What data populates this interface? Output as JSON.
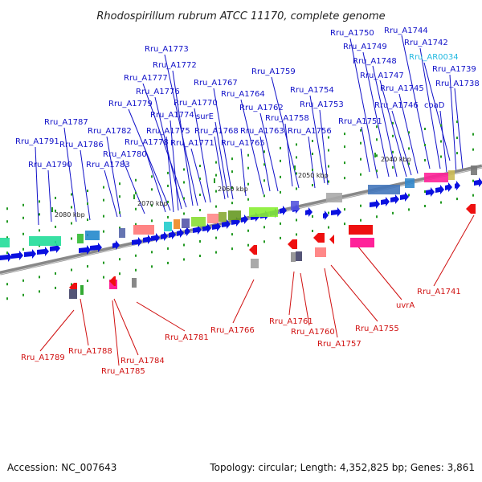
{
  "title": "Rhodospirillum rubrum ATCC 11170, complete genome",
  "footer": {
    "accession": "Accession: NC_007643",
    "summary": "Topology: circular; Length: 4,352,825 bp; Genes: 3,861"
  },
  "colors": {
    "forward_label": "#1010c8",
    "reverse_label": "#d01010",
    "rna_label": "#20b8e0",
    "forward_gene": "#0a10e0",
    "reverse_gene": "#ee1010",
    "backbone": "#888888"
  },
  "scale_labels": [
    "2080 kbp",
    "2070 kbp",
    "2060 kbp",
    "2050 kbp",
    "2040 kbp"
  ],
  "top_labels": [
    "Rru_A1744",
    "Rru_A1742",
    "Rru_AR0034",
    "Rru_A1750",
    "Rru_A1749",
    "Rru_A1739",
    "Rru_A1748",
    "Rru_A1738",
    "Rru_A1747",
    "Rru_A1745",
    "Rru_A1746",
    "coaD",
    "Rru_A1751",
    "Rru_A1773",
    "Rru_A1772",
    "Rru_A1777",
    "Rru_A1776",
    "Rru_A1767",
    "Rru_A1759",
    "Rru_A1764",
    "Rru_A1754",
    "Rru_A1779",
    "Rru_A1770",
    "Rru_A1753",
    "Rru_A1762",
    "Rru_A1758",
    "Rru_A1774",
    "surE",
    "Rru_A1787",
    "Rru_A1782",
    "Rru_A1775",
    "Rru_A1768",
    "Rru_A1763",
    "Rru_A1756",
    "Rru_A1791",
    "Rru_A1786",
    "Rru_A1778",
    "Rru_A1771",
    "Rru_A1765",
    "Rru_A1780",
    "Rru_A1790",
    "Rru_A1783"
  ],
  "bottom_labels": [
    "Rru_A1741",
    "uvrA",
    "Rru_A1755",
    "Rru_A1757",
    "Rru_A1760",
    "Rru_A1761",
    "Rru_A1766",
    "Rru_A1781",
    "Rru_A1784",
    "Rru_A1785",
    "Rru_A1788",
    "Rru_A1789"
  ]
}
